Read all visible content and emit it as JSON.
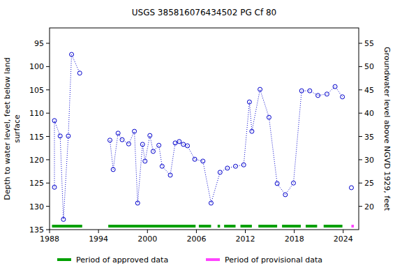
{
  "chart_data": {
    "type": "line",
    "title": "USGS 385816076434502 PG Cf  80",
    "ylabel": [
      "Depth to water level, feet below land",
      "surface"
    ],
    "y2label": "Groundwater level above NGVD 1929, feet",
    "xlim": [
      1988,
      2025.9
    ],
    "xticks": [
      1988,
      1994,
      2000,
      2006,
      2012,
      2018,
      2024
    ],
    "ylim": [
      135,
      91.7
    ],
    "yticks": [
      95,
      100,
      105,
      110,
      115,
      120,
      125,
      130,
      135
    ],
    "y2lim": [
      15,
      58.3
    ],
    "y2ticks": [
      20,
      25,
      30,
      35,
      40,
      45,
      50,
      55
    ],
    "grid": false,
    "x": [
      1988.6,
      1988.6,
      1989.3,
      1989.7,
      1990.3,
      1990.7,
      1991.7,
      null,
      1995.4,
      1995.8,
      1996.4,
      1996.9,
      1997.7,
      1998.4,
      1998.8,
      1999.4,
      1999.7,
      2000.3,
      2000.7,
      2001.4,
      2001.8,
      2002.8,
      2003.4,
      2003.9,
      2004.4,
      2004.9,
      2005.8,
      2006.8,
      2007.8,
      2008.9,
      2009.8,
      2010.8,
      2011.8,
      2012.5,
      2012.8,
      2013.8,
      2014.9,
      2015.9,
      2016.9,
      2017.9,
      2018.9,
      2019.9,
      2020.9,
      2022.0,
      2023.0,
      2023.9,
      null,
      2025.0
    ],
    "series": [
      {
        "color": "#0000cc",
        "marker": "circle",
        "line_style": "dotted",
        "values": [
          125.9,
          111.6,
          114.9,
          132.8,
          114.9,
          97.4,
          101.4,
          null,
          115.8,
          122.1,
          114.3,
          115.7,
          116.6,
          113.9,
          129.3,
          116.7,
          120.3,
          114.8,
          118.2,
          116.9,
          121.4,
          123.3,
          116.4,
          116.1,
          116.7,
          117.0,
          119.9,
          120.3,
          129.3,
          122.7,
          121.8,
          121.4,
          121.1,
          107.6,
          113.9,
          104.9,
          110.9,
          125.1,
          127.5,
          125.0,
          105.2,
          105.2,
          106.2,
          105.9,
          104.3,
          106.5,
          null,
          126.0
        ]
      }
    ],
    "periods": [
      {
        "name": "Period of approved data",
        "color": "#00a000",
        "ranges": [
          [
            1988.3,
            1992.0
          ],
          [
            1995.2,
            2005.9
          ],
          [
            2006.3,
            2007.8
          ],
          [
            2008.6,
            2008.9
          ],
          [
            2009.4,
            2010.8
          ],
          [
            2011.4,
            2012.8
          ],
          [
            2013.6,
            2015.9
          ],
          [
            2016.5,
            2018.8
          ],
          [
            2019.4,
            2020.8
          ],
          [
            2021.6,
            2023.9
          ]
        ]
      },
      {
        "name": "Period of provisional data",
        "color": "#ff44ff",
        "ranges": [
          [
            2025.0,
            2025.3
          ]
        ]
      }
    ]
  }
}
